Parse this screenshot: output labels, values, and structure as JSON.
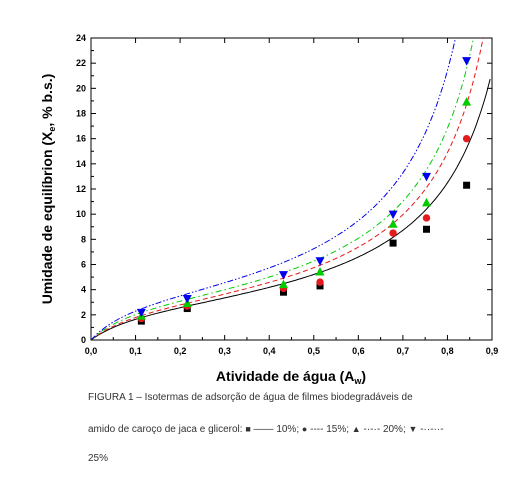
{
  "chart_data": {
    "type": "scatter",
    "xlabel": "Atividade de água (A",
    "xlabel_sub": "w",
    "xlabel_end": ")",
    "ylabel": "Umidade de equilíbrion (X",
    "ylabel_sub": "e",
    "ylabel_end": ", % b.s.)",
    "xlim": [
      0.0,
      0.9
    ],
    "ylim": [
      0,
      24
    ],
    "xticks": [
      "0,0",
      "0,1",
      "0,2",
      "0,3",
      "0,4",
      "0,5",
      "0,6",
      "0,7",
      "0,8",
      "0,9"
    ],
    "yticks": [
      "0",
      "2",
      "4",
      "6",
      "8",
      "10",
      "12",
      "14",
      "16",
      "18",
      "20",
      "22",
      "24"
    ],
    "grid": false,
    "series": [
      {
        "name": "10%",
        "marker": "square",
        "line": "solid",
        "color": "#000000",
        "x": [
          0.113,
          0.216,
          0.432,
          0.514,
          0.678,
          0.753,
          0.843
        ],
        "y": [
          1.5,
          2.5,
          3.8,
          4.3,
          7.7,
          8.8,
          12.3
        ]
      },
      {
        "name": "15%",
        "marker": "circle",
        "line": "dashed",
        "color": "#e41a1c",
        "x": [
          0.113,
          0.216,
          0.432,
          0.514,
          0.678,
          0.753,
          0.843
        ],
        "y": [
          1.7,
          2.7,
          4.1,
          4.6,
          8.5,
          9.7,
          16.0
        ]
      },
      {
        "name": "20%",
        "marker": "triangle-up",
        "line": "dash-dot",
        "color": "#00cc00",
        "x": [
          0.113,
          0.216,
          0.432,
          0.514,
          0.678,
          0.753,
          0.843
        ],
        "y": [
          1.9,
          2.9,
          4.4,
          5.4,
          9.2,
          10.9,
          18.9
        ]
      },
      {
        "name": "25%",
        "marker": "triangle-down",
        "line": "dash-dot-dot",
        "color": "#0000ee",
        "x": [
          0.113,
          0.216,
          0.432,
          0.514,
          0.678,
          0.753,
          0.843
        ],
        "y": [
          2.2,
          3.3,
          5.2,
          6.3,
          10.0,
          13.0,
          22.2
        ]
      }
    ]
  },
  "caption": {
    "line1": "FIGURA 1 – Isotermas de adsorção de água de filmes biodegradáveis de",
    "line2_text": "amido de caroço de jaca e glicerol:",
    "legend": [
      {
        "symbol": "■",
        "line": "——",
        "label": "10%;"
      },
      {
        "symbol": "●",
        "line": "----",
        "label": "15%;"
      },
      {
        "symbol": "▲",
        "line": "-·-·-",
        "label": "20%;"
      },
      {
        "symbol": "▼",
        "line": "-··-··-",
        "label": ""
      }
    ],
    "line3": "25%"
  }
}
